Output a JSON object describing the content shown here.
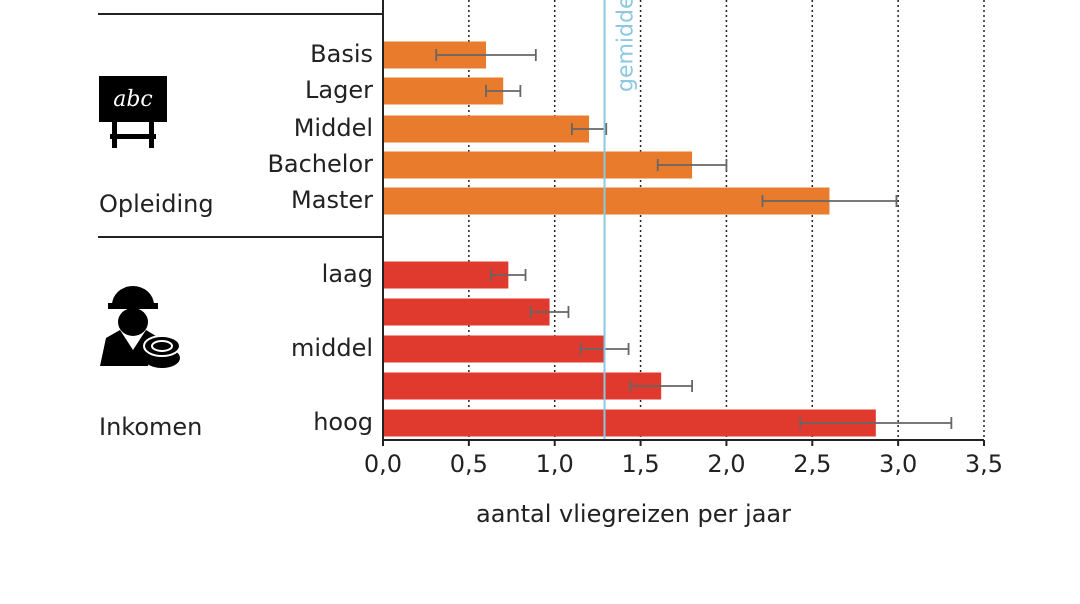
{
  "chart_data": {
    "type": "bar",
    "orientation": "horizontal",
    "xlabel": "aantal vliegreizen per jaar",
    "xlim": [
      0,
      3.5
    ],
    "xticks": [
      {
        "value": 0,
        "label": "0,0"
      },
      {
        "value": 0.5,
        "label": "0,5"
      },
      {
        "value": 1,
        "label": "1,0"
      },
      {
        "value": 1.5,
        "label": "1,5"
      },
      {
        "value": 2,
        "label": "2,0"
      },
      {
        "value": 2.5,
        "label": "2,5"
      },
      {
        "value": 3,
        "label": "3,0"
      },
      {
        "value": 3.5,
        "label": "3,5"
      }
    ],
    "grid": true,
    "average": {
      "value": 1.29,
      "label": "gemidde",
      "color": "#8cc8e0"
    },
    "groups": [
      {
        "name": "Opleiding",
        "icon_label": "abc",
        "color": "#e87b2c",
        "categories": [
          "Basis",
          "Lager",
          "Middel",
          "Bachelor",
          "Master"
        ],
        "values": [
          0.6,
          0.7,
          1.2,
          1.8,
          2.6
        ],
        "errors": [
          0.29,
          0.1,
          0.1,
          0.2,
          0.39
        ]
      },
      {
        "name": "Inkomen",
        "color": "#e03a2e",
        "categories": [
          "laag",
          null,
          "middel",
          null,
          "hoog"
        ],
        "values": [
          0.73,
          0.97,
          1.29,
          1.62,
          2.87
        ],
        "errors": [
          0.1,
          0.11,
          0.14,
          0.18,
          0.44
        ]
      }
    ]
  }
}
